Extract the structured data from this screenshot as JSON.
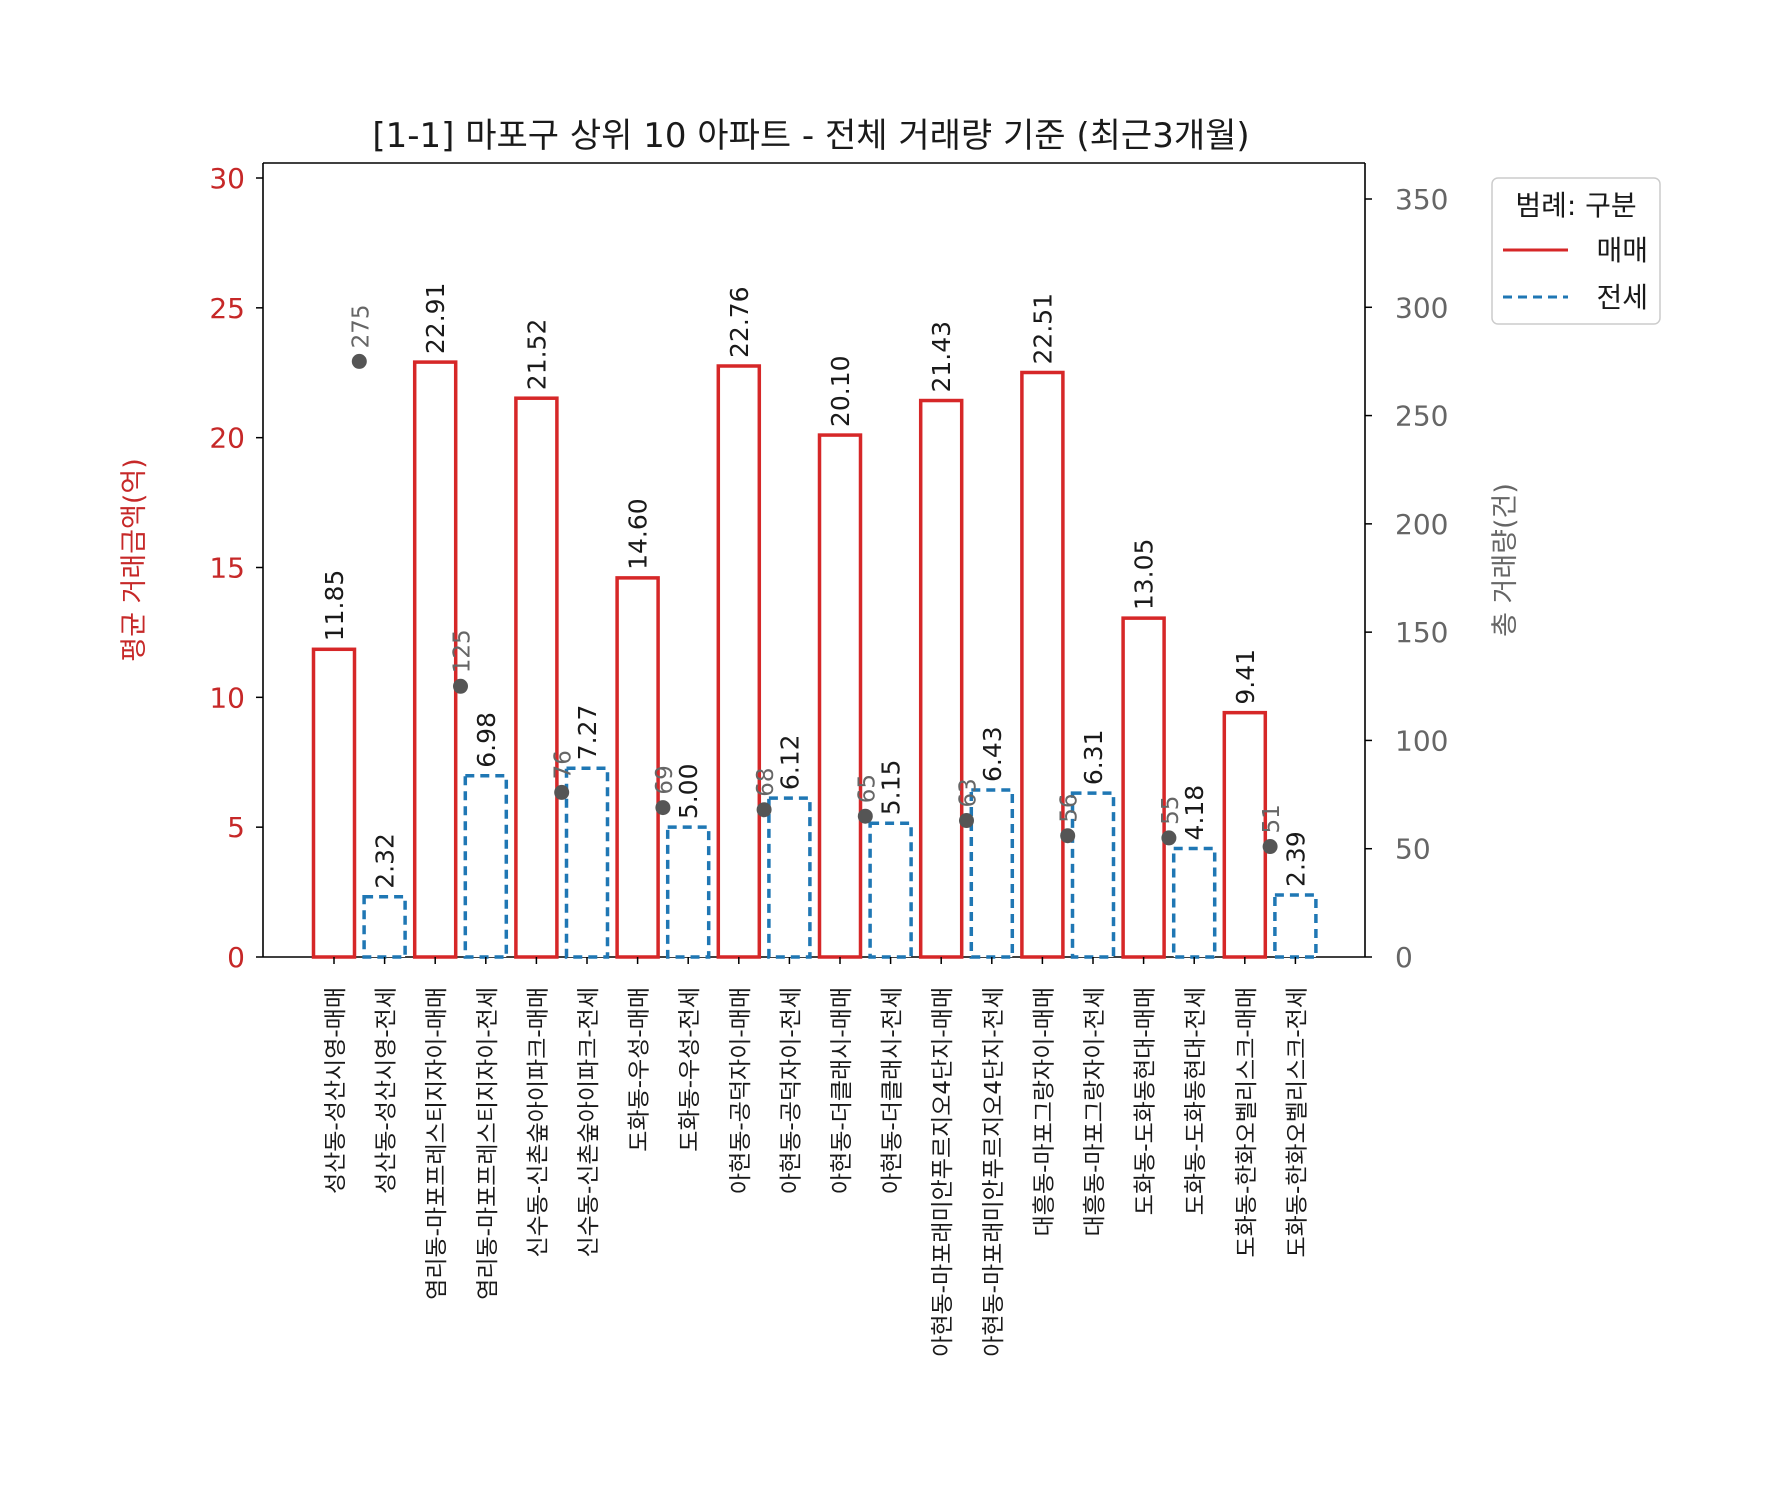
{
  "chart_data": {
    "type": "bar",
    "title": "[1-1] 마포구 상위 10 아파트 - 전체 거래량 기준 (최근3개월)",
    "ylabel_left": "평균 거래금액(억)",
    "ylabel_right": "총 거래량(건)",
    "ylim_left": [
      0,
      30
    ],
    "ylim_right": [
      0,
      360
    ],
    "yticks_left": [
      0,
      5,
      10,
      15,
      20,
      25,
      30
    ],
    "yticks_right": [
      0,
      50,
      100,
      150,
      200,
      250,
      300,
      350
    ],
    "grid": false,
    "legend_position": "outside top-right",
    "legend": {
      "title": "범례: 구분",
      "entries": [
        {
          "label": "매매",
          "style": "solid",
          "color": "#d62728"
        },
        {
          "label": "전세",
          "style": "dashed",
          "color": "#1f77b4"
        }
      ]
    },
    "categories": [
      "성산동-성산시영-매매",
      "성산동-성산시영-전세",
      "염리동-마포프레스티지자이-매매",
      "염리동-마포프레스티지자이-전세",
      "신수동-신촌숲아이파크-매매",
      "신수동-신촌숲아이파크-전세",
      "도화동-우성-매매",
      "도화동-우성-전세",
      "아현동-공덕자이-매매",
      "아현동-공덕자이-전세",
      "아현동-더클래시-매매",
      "아현동-더클래시-전세",
      "아현동-마포래미안푸르지오4단지-매매",
      "아현동-마포래미안푸르지오4단지-전세",
      "대흥동-마포그랑자이-매매",
      "대흥동-마포그랑자이-전세",
      "도화동-도화동현대-매매",
      "도화동-도화동현대-전세",
      "도화동-한화오벨리스크-매매",
      "도화동-한화오벨리스크-전세"
    ],
    "bar_kind": [
      "매매",
      "전세",
      "매매",
      "전세",
      "매매",
      "전세",
      "매매",
      "전세",
      "매매",
      "전세",
      "매매",
      "전세",
      "매매",
      "전세",
      "매매",
      "전세",
      "매매",
      "전세",
      "매매",
      "전세"
    ],
    "values": [
      11.85,
      2.32,
      22.91,
      6.98,
      21.52,
      7.27,
      14.6,
      5.0,
      22.76,
      6.12,
      20.1,
      5.15,
      21.43,
      6.43,
      22.51,
      6.31,
      13.05,
      4.18,
      9.41,
      2.39
    ],
    "value_labels": [
      "11.85",
      "2.32",
      "22.91",
      "6.98",
      "21.52",
      "7.27",
      "14.60",
      "5.00",
      "22.76",
      "6.12",
      "20.10",
      "5.15",
      "21.43",
      "6.43",
      "22.51",
      "6.31",
      "13.05",
      "4.18",
      "9.41",
      "2.39"
    ],
    "volume": {
      "values": [
        275,
        125,
        76,
        69,
        68,
        65,
        63,
        56,
        55,
        51
      ],
      "labels": [
        "275",
        "125",
        "76",
        "69",
        "68",
        "65",
        "63",
        "56",
        "55",
        "51"
      ],
      "color": "#555555"
    },
    "colors": {
      "매매": "#d62728",
      "전세": "#1f77b4",
      "left_axis": "#c62828",
      "right_axis": "#666666"
    }
  }
}
